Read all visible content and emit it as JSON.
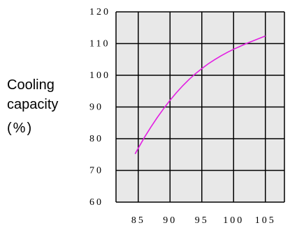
{
  "chart_data": {
    "type": "line",
    "title": "",
    "xlabel": "",
    "ylabel_lines": [
      "Cooling",
      "capacity",
      "(%)"
    ],
    "xlim": [
      81.5,
      108
    ],
    "ylim": [
      60,
      120
    ],
    "xticks": [
      85,
      90,
      95,
      100,
      105
    ],
    "yticks": [
      60,
      70,
      80,
      90,
      100,
      110,
      120
    ],
    "grid": true,
    "colors": {
      "plot_bg": "#e8e8e8",
      "grid": "#000000",
      "series": "#e21ee2"
    },
    "series": [
      {
        "x": [
          84.5,
          85,
          86,
          87,
          88,
          89,
          90,
          91,
          92,
          93,
          94,
          95,
          96,
          97,
          98,
          99,
          100,
          101,
          102,
          103,
          104,
          105
        ],
        "y": [
          75.2,
          77.0,
          80.5,
          83.7,
          86.7,
          89.5,
          92.1,
          94.5,
          96.7,
          98.7,
          100.5,
          102.1,
          103.6,
          104.9,
          106.1,
          107.2,
          108.2,
          109.1,
          110.0,
          110.8,
          111.6,
          112.4
        ]
      }
    ]
  }
}
